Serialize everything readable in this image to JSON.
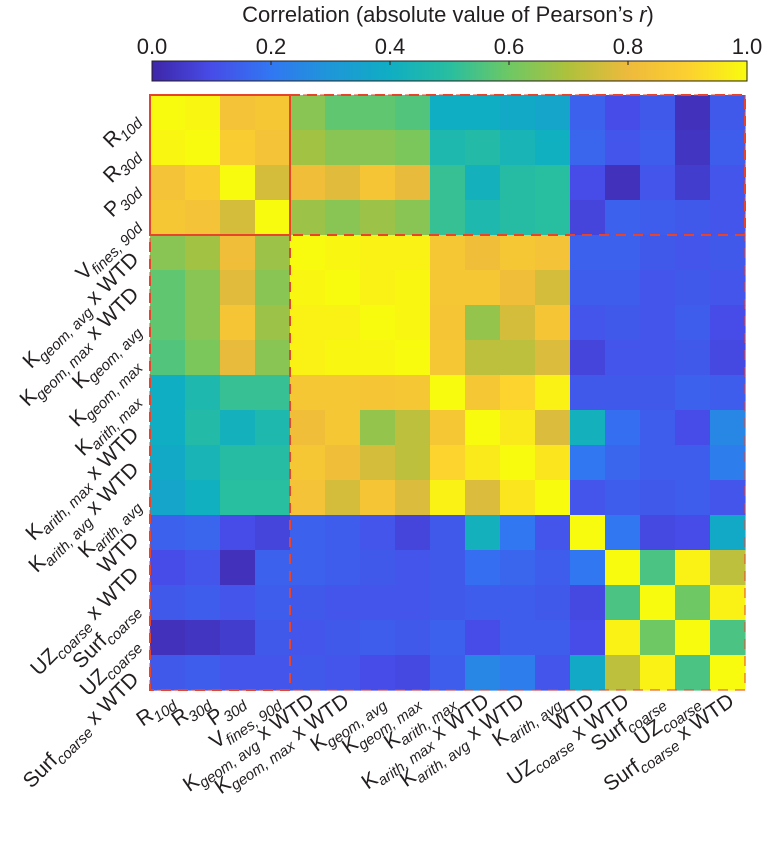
{
  "chart_data": {
    "type": "heatmap",
    "title": "Correlation (absolute value of Pearson’s r)",
    "title_parts": [
      {
        "text": "Correlation (absolute value of Pearson’s ",
        "italic": false
      },
      {
        "text": "r",
        "italic": true
      },
      {
        "text": ")",
        "italic": false
      }
    ],
    "colorbar": {
      "range": [
        0.0,
        1.0
      ],
      "tick_labels": [
        "0.0",
        "0.2",
        "0.4",
        "0.6",
        "0.8",
        "1.0"
      ],
      "tick_values": [
        0.0,
        0.2,
        0.4,
        0.6,
        0.8,
        1.0
      ],
      "colormap": "parula",
      "placement": "top"
    },
    "labels": [
      {
        "id": "R10d",
        "main": "R",
        "sub": "10d",
        "suffix": ""
      },
      {
        "id": "R30d",
        "main": "R",
        "sub": "30d",
        "suffix": ""
      },
      {
        "id": "P30d",
        "main": "P",
        "sub": "30d",
        "suffix": ""
      },
      {
        "id": "Vfines90d",
        "main": "V",
        "sub": "fines, 90d",
        "suffix": ""
      },
      {
        "id": "Kgeom_avg_WTD",
        "main": "K",
        "sub": "geom, avg",
        "suffix": " x WTD"
      },
      {
        "id": "Kgeom_max_WTD",
        "main": "K",
        "sub": "geom, max",
        "suffix": " x WTD"
      },
      {
        "id": "Kgeom_avg",
        "main": "K",
        "sub": "geom, avg",
        "suffix": ""
      },
      {
        "id": "Kgeom_max",
        "main": "K",
        "sub": "geom, max",
        "suffix": ""
      },
      {
        "id": "Karith_max",
        "main": "K",
        "sub": "arith, max",
        "suffix": ""
      },
      {
        "id": "Karith_max_WTD",
        "main": "K",
        "sub": "arith, max",
        "suffix": " x WTD"
      },
      {
        "id": "Karith_avg_WTD",
        "main": "K",
        "sub": "arith, avg",
        "suffix": " x WTD"
      },
      {
        "id": "Karith_avg",
        "main": "K",
        "sub": "arith, avg",
        "suffix": ""
      },
      {
        "id": "WTD",
        "main": "WTD",
        "sub": "",
        "suffix": ""
      },
      {
        "id": "UZcoarse_WTD",
        "main": "UZ",
        "sub": "coarse",
        "suffix": " x WTD"
      },
      {
        "id": "Surfcoarse",
        "main": "Surf",
        "sub": "coarse",
        "suffix": ""
      },
      {
        "id": "UZcoarse",
        "main": "UZ",
        "sub": "coarse",
        "suffix": ""
      },
      {
        "id": "Surfcoarse_WTD",
        "main": "Surf",
        "sub": "coarse",
        "suffix": " x WTD"
      }
    ],
    "values": [
      [
        1.0,
        0.99,
        0.84,
        0.86,
        0.64,
        0.58,
        0.58,
        0.56,
        0.4,
        0.4,
        0.38,
        0.36,
        0.15,
        0.1,
        0.13,
        0.03,
        0.13
      ],
      [
        0.99,
        1.0,
        0.88,
        0.84,
        0.68,
        0.64,
        0.64,
        0.62,
        0.46,
        0.48,
        0.44,
        0.41,
        0.16,
        0.12,
        0.14,
        0.04,
        0.14
      ],
      [
        0.84,
        0.88,
        1.0,
        0.76,
        0.82,
        0.78,
        0.85,
        0.79,
        0.52,
        0.42,
        0.49,
        0.5,
        0.1,
        0.03,
        0.12,
        0.06,
        0.12
      ],
      [
        0.86,
        0.84,
        0.76,
        1.0,
        0.67,
        0.64,
        0.67,
        0.64,
        0.52,
        0.46,
        0.49,
        0.5,
        0.08,
        0.15,
        0.14,
        0.13,
        0.12
      ],
      [
        0.64,
        0.68,
        0.82,
        0.67,
        1.0,
        0.99,
        0.98,
        0.98,
        0.86,
        0.82,
        0.86,
        0.84,
        0.15,
        0.15,
        0.13,
        0.12,
        0.13
      ],
      [
        0.58,
        0.64,
        0.78,
        0.64,
        0.99,
        1.0,
        0.98,
        0.99,
        0.86,
        0.86,
        0.82,
        0.76,
        0.14,
        0.14,
        0.12,
        0.13,
        0.12
      ],
      [
        0.58,
        0.64,
        0.85,
        0.67,
        0.98,
        0.98,
        1.0,
        0.99,
        0.85,
        0.66,
        0.76,
        0.85,
        0.12,
        0.13,
        0.12,
        0.14,
        0.1
      ],
      [
        0.56,
        0.62,
        0.79,
        0.64,
        0.98,
        0.99,
        0.99,
        1.0,
        0.86,
        0.72,
        0.72,
        0.77,
        0.08,
        0.12,
        0.12,
        0.13,
        0.09
      ],
      [
        0.4,
        0.46,
        0.52,
        0.52,
        0.86,
        0.86,
        0.85,
        0.86,
        1.0,
        0.86,
        0.91,
        0.98,
        0.13,
        0.13,
        0.13,
        0.15,
        0.14
      ],
      [
        0.4,
        0.48,
        0.42,
        0.46,
        0.82,
        0.86,
        0.66,
        0.72,
        0.86,
        1.0,
        0.96,
        0.77,
        0.42,
        0.18,
        0.14,
        0.1,
        0.25
      ],
      [
        0.38,
        0.44,
        0.49,
        0.49,
        0.86,
        0.82,
        0.76,
        0.72,
        0.91,
        0.96,
        1.0,
        0.95,
        0.2,
        0.16,
        0.14,
        0.14,
        0.22
      ],
      [
        0.36,
        0.41,
        0.5,
        0.5,
        0.84,
        0.76,
        0.85,
        0.77,
        0.98,
        0.77,
        0.95,
        1.0,
        0.12,
        0.14,
        0.13,
        0.14,
        0.12
      ],
      [
        0.15,
        0.16,
        0.1,
        0.08,
        0.15,
        0.14,
        0.12,
        0.08,
        0.13,
        0.42,
        0.2,
        0.12,
        1.0,
        0.2,
        0.09,
        0.1,
        0.38
      ],
      [
        0.1,
        0.12,
        0.03,
        0.15,
        0.15,
        0.14,
        0.13,
        0.12,
        0.13,
        0.18,
        0.16,
        0.14,
        0.2,
        1.0,
        0.55,
        0.98,
        0.72
      ],
      [
        0.13,
        0.14,
        0.12,
        0.14,
        0.13,
        0.12,
        0.12,
        0.12,
        0.13,
        0.14,
        0.14,
        0.13,
        0.09,
        0.55,
        1.0,
        0.6,
        0.98
      ],
      [
        0.03,
        0.04,
        0.06,
        0.13,
        0.12,
        0.13,
        0.14,
        0.13,
        0.15,
        0.1,
        0.14,
        0.14,
        0.1,
        0.98,
        0.6,
        1.0,
        0.55
      ],
      [
        0.13,
        0.14,
        0.12,
        0.12,
        0.13,
        0.12,
        0.1,
        0.09,
        0.14,
        0.25,
        0.22,
        0.12,
        0.38,
        0.72,
        0.98,
        0.55,
        1.0
      ]
    ],
    "blocks": [
      {
        "from": 0,
        "to": 3,
        "style": "solid",
        "color": "#e8442c"
      },
      {
        "from": 0,
        "to": 16,
        "style": "dashed",
        "color": "#e8442c"
      }
    ]
  }
}
